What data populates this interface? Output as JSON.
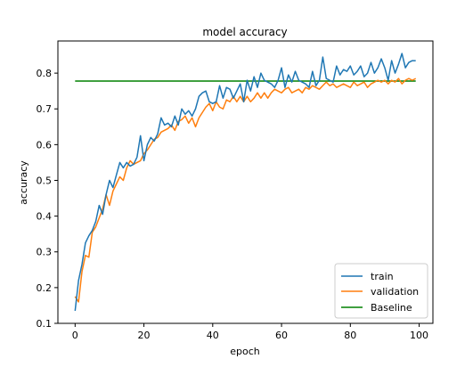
{
  "chart_data": {
    "type": "line",
    "title": "model accuracy",
    "xlabel": "epoch",
    "ylabel": "accuracy",
    "xlim": [
      -5,
      104
    ],
    "ylim": [
      0.1,
      0.89
    ],
    "xticks": [
      0,
      20,
      40,
      60,
      80,
      100
    ],
    "yticks": [
      0.1,
      0.2,
      0.3,
      0.4,
      0.5,
      0.6,
      0.7,
      0.8
    ],
    "grid": false,
    "legend_position": "lower-right",
    "series": [
      {
        "name": "train",
        "color": "#1f77b4",
        "x": [
          0,
          1,
          2,
          3,
          4,
          5,
          6,
          7,
          8,
          9,
          10,
          11,
          12,
          13,
          14,
          15,
          16,
          17,
          18,
          19,
          20,
          21,
          22,
          23,
          24,
          25,
          26,
          27,
          28,
          29,
          30,
          31,
          32,
          33,
          34,
          35,
          36,
          37,
          38,
          39,
          40,
          41,
          42,
          43,
          44,
          45,
          46,
          47,
          48,
          49,
          50,
          51,
          52,
          53,
          54,
          55,
          56,
          57,
          58,
          59,
          60,
          61,
          62,
          63,
          64,
          65,
          66,
          67,
          68,
          69,
          70,
          71,
          72,
          73,
          74,
          75,
          76,
          77,
          78,
          79,
          80,
          81,
          82,
          83,
          84,
          85,
          86,
          87,
          88,
          89,
          90,
          91,
          92,
          93,
          94,
          95,
          96,
          97,
          98,
          99
        ],
        "values": [
          0.135,
          0.22,
          0.265,
          0.325,
          0.345,
          0.36,
          0.385,
          0.43,
          0.405,
          0.46,
          0.5,
          0.48,
          0.515,
          0.55,
          0.535,
          0.55,
          0.54,
          0.545,
          0.565,
          0.625,
          0.555,
          0.6,
          0.62,
          0.61,
          0.63,
          0.675,
          0.655,
          0.66,
          0.65,
          0.68,
          0.655,
          0.7,
          0.685,
          0.695,
          0.68,
          0.7,
          0.735,
          0.745,
          0.75,
          0.72,
          0.715,
          0.72,
          0.765,
          0.73,
          0.76,
          0.755,
          0.73,
          0.75,
          0.77,
          0.72,
          0.78,
          0.75,
          0.79,
          0.76,
          0.8,
          0.78,
          0.775,
          0.77,
          0.76,
          0.78,
          0.815,
          0.76,
          0.795,
          0.775,
          0.805,
          0.78,
          0.775,
          0.77,
          0.76,
          0.805,
          0.765,
          0.78,
          0.845,
          0.785,
          0.78,
          0.775,
          0.82,
          0.795,
          0.81,
          0.805,
          0.82,
          0.795,
          0.805,
          0.82,
          0.79,
          0.8,
          0.83,
          0.8,
          0.815,
          0.84,
          0.815,
          0.78,
          0.835,
          0.8,
          0.825,
          0.855,
          0.815,
          0.83,
          0.835,
          0.835
        ]
      },
      {
        "name": "validation",
        "color": "#ff7f0e",
        "x": [
          0,
          1,
          2,
          3,
          4,
          5,
          6,
          7,
          8,
          9,
          10,
          11,
          12,
          13,
          14,
          15,
          16,
          17,
          18,
          19,
          20,
          21,
          22,
          23,
          24,
          25,
          26,
          27,
          28,
          29,
          30,
          31,
          32,
          33,
          34,
          35,
          36,
          37,
          38,
          39,
          40,
          41,
          42,
          43,
          44,
          45,
          46,
          47,
          48,
          49,
          50,
          51,
          52,
          53,
          54,
          55,
          56,
          57,
          58,
          59,
          60,
          61,
          62,
          63,
          64,
          65,
          66,
          67,
          68,
          69,
          70,
          71,
          72,
          73,
          74,
          75,
          76,
          77,
          78,
          79,
          80,
          81,
          82,
          83,
          84,
          85,
          86,
          87,
          88,
          89,
          90,
          91,
          92,
          93,
          94,
          95,
          96,
          97,
          98,
          99
        ],
        "values": [
          0.175,
          0.16,
          0.245,
          0.29,
          0.285,
          0.355,
          0.37,
          0.395,
          0.42,
          0.46,
          0.43,
          0.47,
          0.49,
          0.51,
          0.5,
          0.535,
          0.555,
          0.545,
          0.55,
          0.555,
          0.575,
          0.585,
          0.6,
          0.615,
          0.62,
          0.635,
          0.64,
          0.645,
          0.655,
          0.64,
          0.665,
          0.67,
          0.68,
          0.66,
          0.675,
          0.65,
          0.675,
          0.69,
          0.705,
          0.715,
          0.695,
          0.72,
          0.705,
          0.7,
          0.725,
          0.72,
          0.735,
          0.72,
          0.735,
          0.72,
          0.735,
          0.72,
          0.73,
          0.745,
          0.73,
          0.745,
          0.73,
          0.745,
          0.755,
          0.75,
          0.745,
          0.755,
          0.76,
          0.745,
          0.75,
          0.755,
          0.745,
          0.76,
          0.755,
          0.765,
          0.76,
          0.755,
          0.765,
          0.775,
          0.765,
          0.77,
          0.76,
          0.765,
          0.77,
          0.765,
          0.76,
          0.775,
          0.765,
          0.77,
          0.775,
          0.76,
          0.77,
          0.775,
          0.78,
          0.775,
          0.78,
          0.77,
          0.78,
          0.775,
          0.785,
          0.77,
          0.78,
          0.785,
          0.78,
          0.785
        ]
      },
      {
        "name": "Baseline",
        "color": "#008000",
        "x": [
          0,
          99
        ],
        "values": [
          0.778,
          0.778
        ]
      }
    ]
  }
}
